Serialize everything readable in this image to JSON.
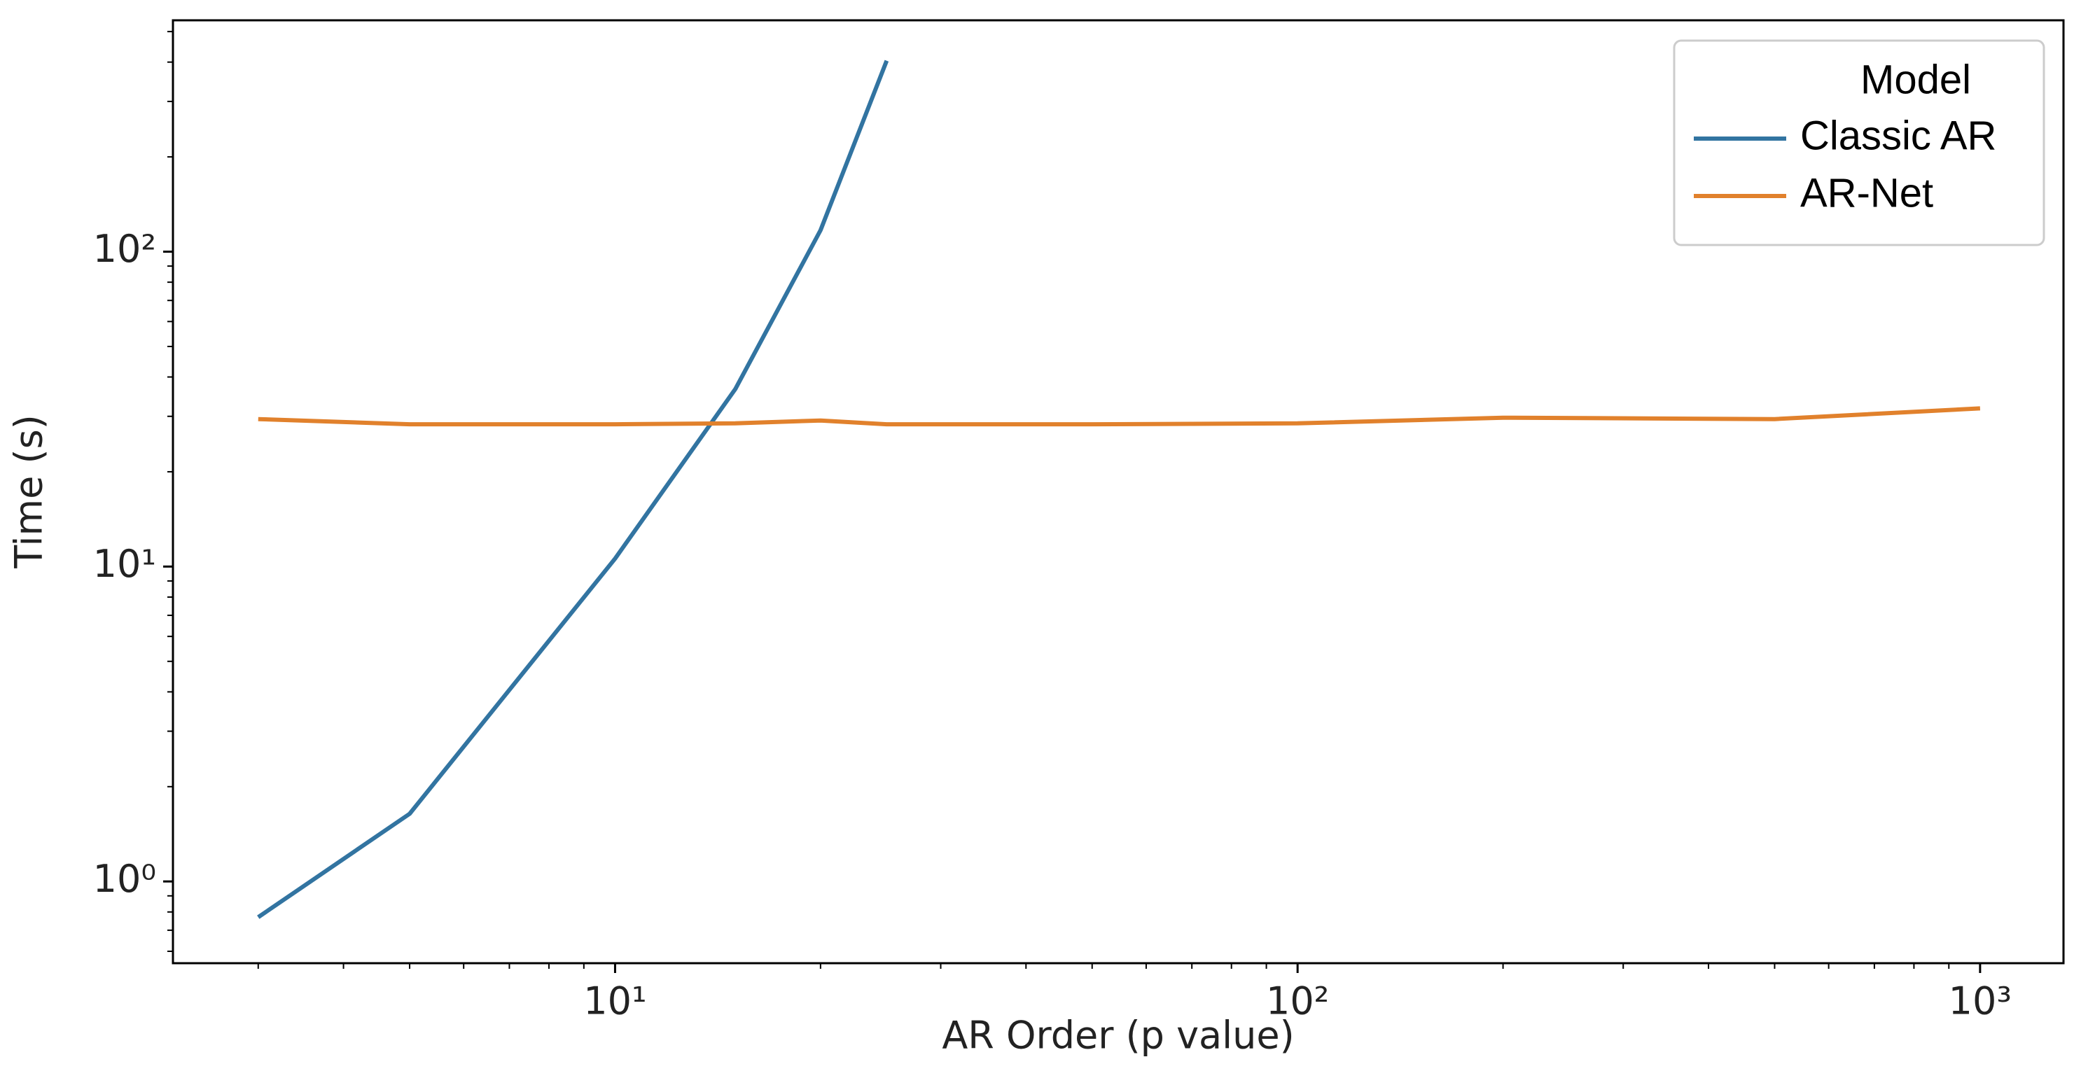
{
  "chart_data": {
    "type": "line",
    "x_label": "AR Order (p value)",
    "y_label": "Time (s)",
    "x": [
      3,
      5,
      10,
      15,
      20,
      25,
      50,
      100,
      200,
      500,
      1000
    ],
    "series": [
      {
        "name": "Classic AR",
        "color": "#3274a1",
        "values": [
          0.77,
          1.64,
          10.6,
          36.6,
          117,
          404,
          null,
          null,
          null,
          null,
          null
        ]
      },
      {
        "name": "AR-Net",
        "color": "#e1812c",
        "values": [
          29.4,
          28.3,
          28.3,
          28.5,
          29.1,
          28.3,
          28.3,
          28.5,
          29.7,
          29.4,
          31.8
        ]
      }
    ],
    "xlim": [
      2.25,
      1325
    ],
    "ylim": [
      0.55,
      543
    ],
    "xscale": "log",
    "yscale": "log",
    "xticks": [
      {
        "value": 10,
        "label": "10¹"
      },
      {
        "value": 100,
        "label": "10²"
      },
      {
        "value": 1000,
        "label": "10³"
      }
    ],
    "yticks": [
      {
        "value": 1,
        "label": "10⁰"
      },
      {
        "value": 10,
        "label": "10¹"
      },
      {
        "value": 100,
        "label": "10²"
      }
    ],
    "xminorticks": [
      3,
      4,
      5,
      6,
      7,
      8,
      9,
      20,
      30,
      40,
      50,
      60,
      70,
      80,
      90,
      200,
      300,
      400,
      500,
      600,
      700,
      800,
      900
    ],
    "yminorticks": [
      0.6,
      0.7,
      0.8,
      0.9,
      2,
      3,
      4,
      5,
      6,
      7,
      8,
      9,
      20,
      30,
      40,
      50,
      60,
      70,
      80,
      90,
      200,
      300,
      400,
      500
    ],
    "legend_title": "Model",
    "legend_position": "upper right",
    "grid": false
  }
}
